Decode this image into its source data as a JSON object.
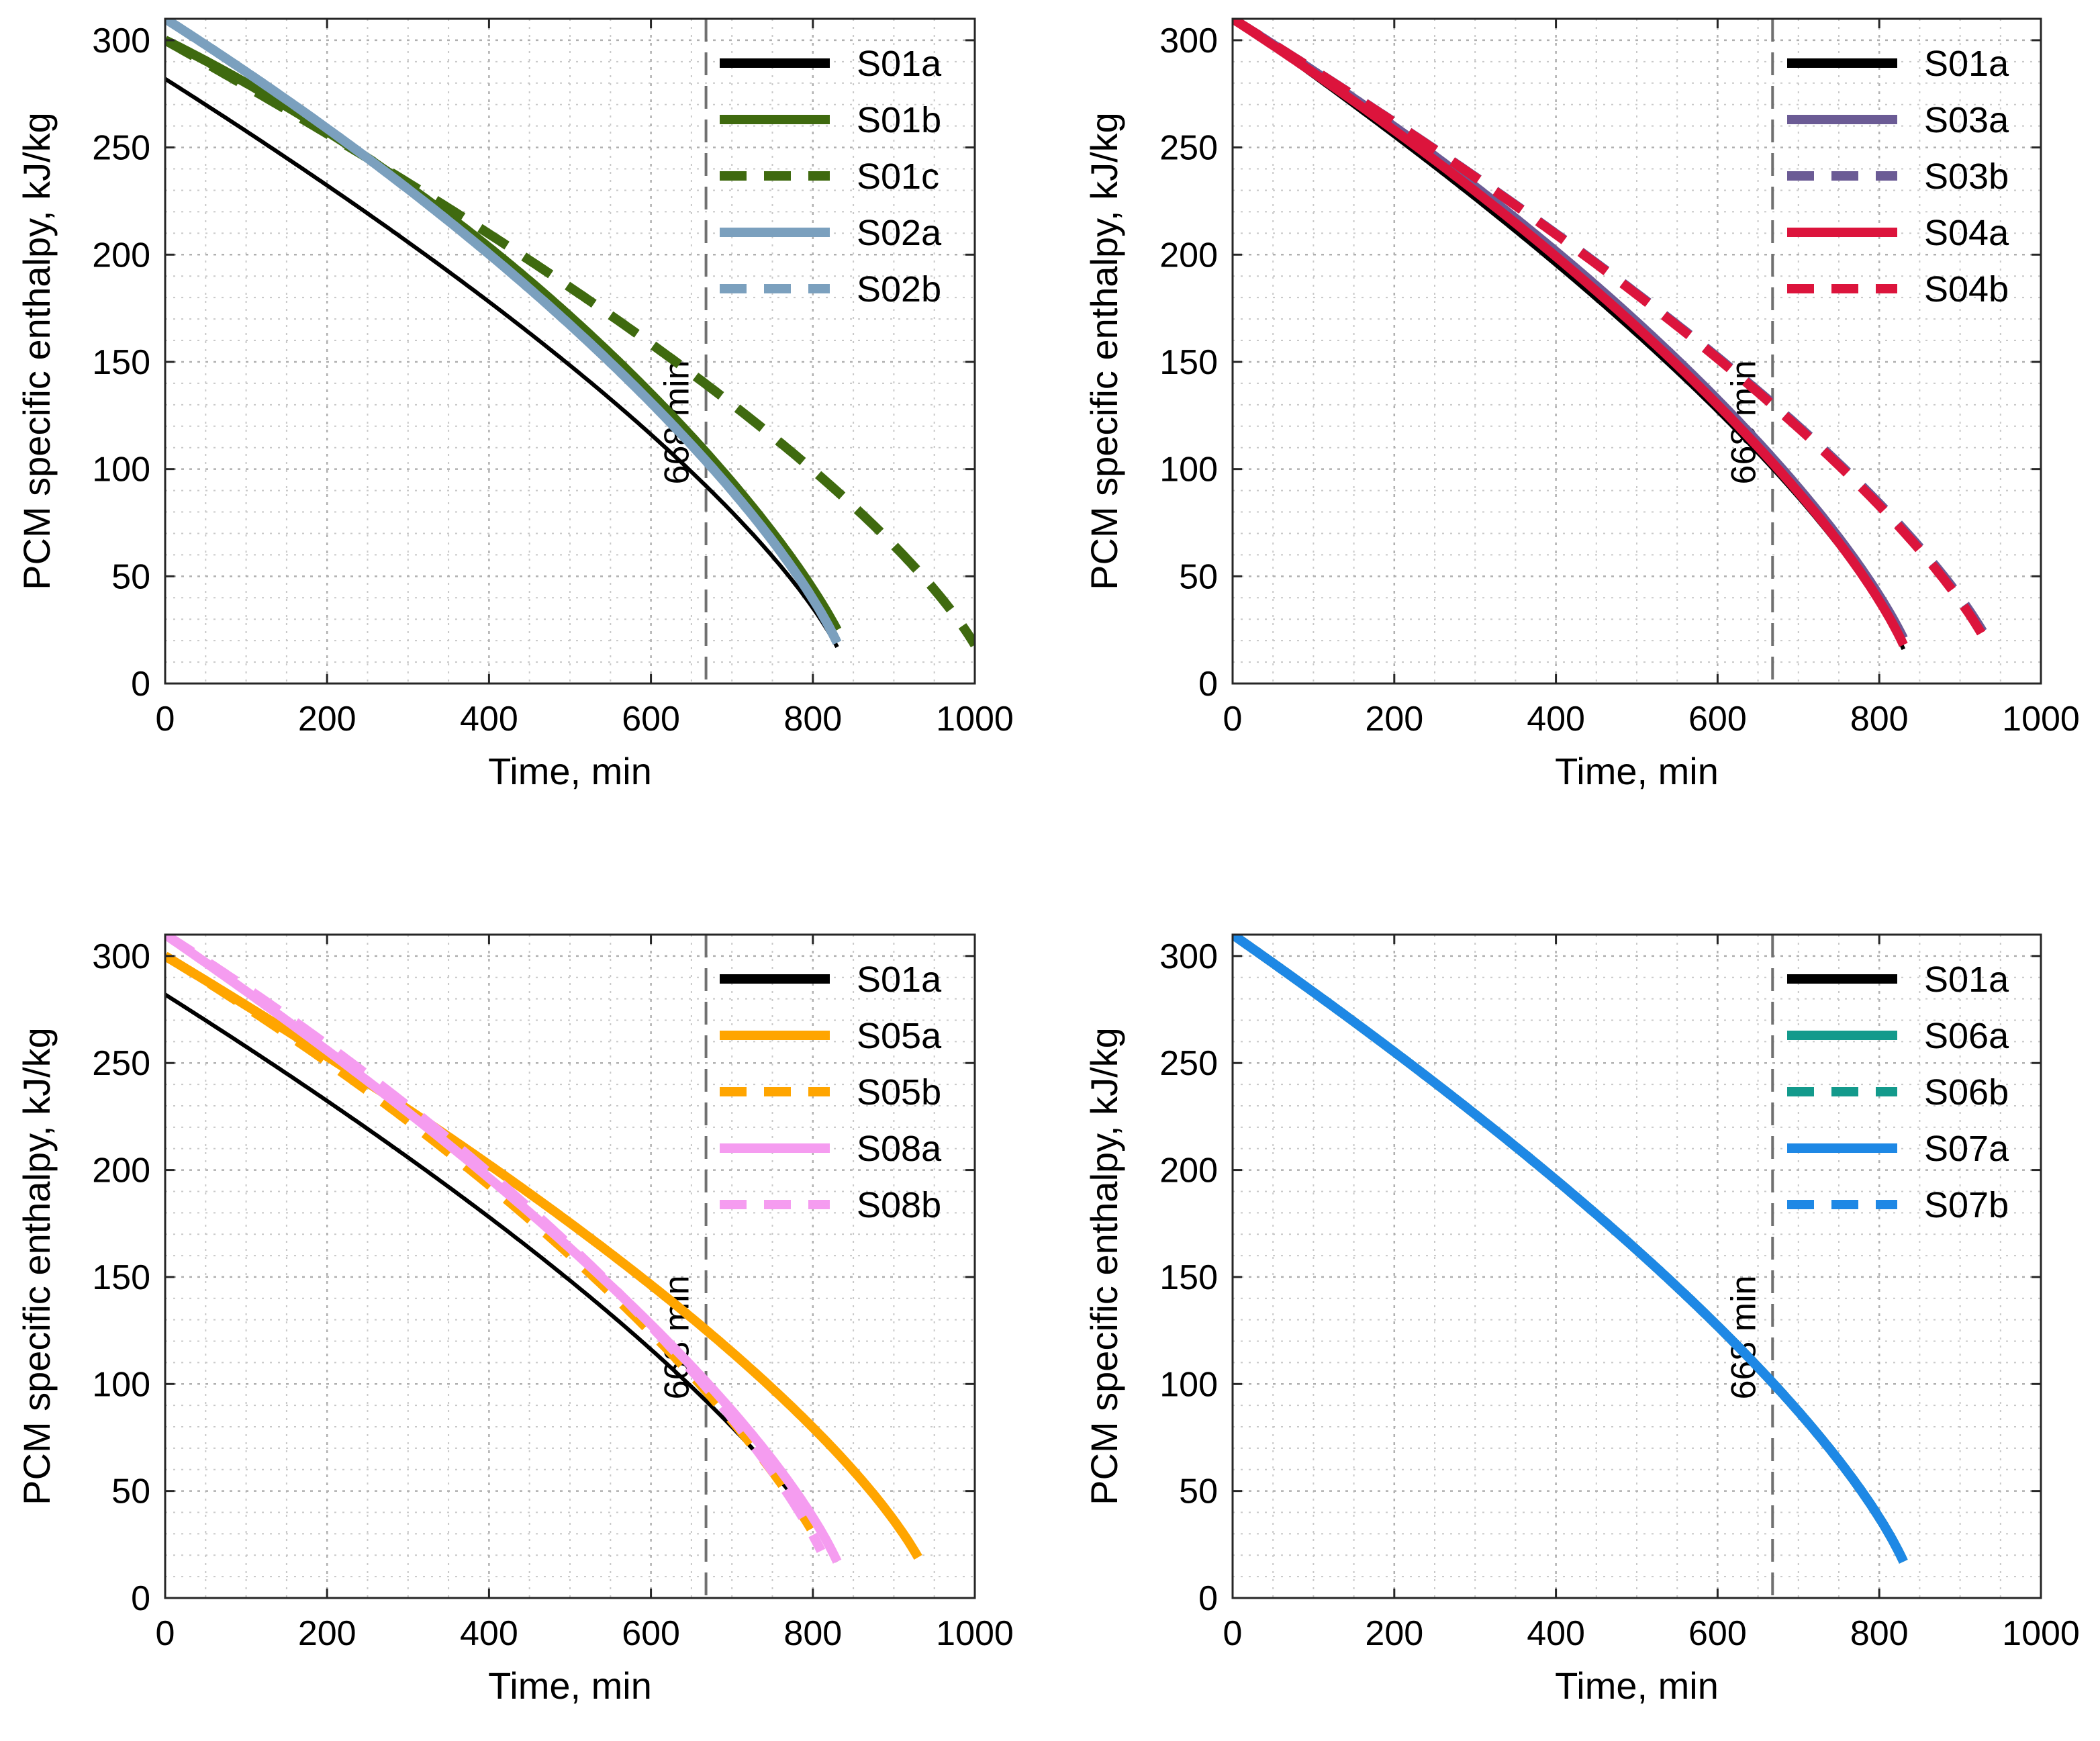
{
  "chart_data": [
    {
      "type": "line",
      "panel": "top-left",
      "xlabel": "Time, min",
      "ylabel": "PCM specific enthalpy, kJ/kg",
      "xlim": [
        0,
        1000
      ],
      "ylim": [
        0,
        310
      ],
      "xticks": [
        0,
        200,
        400,
        600,
        800,
        1000
      ],
      "yticks": [
        0,
        50,
        100,
        150,
        200,
        250,
        300
      ],
      "grid": true,
      "legend_position": "top-right",
      "vline": {
        "x": 668,
        "label": "668 min"
      },
      "series": [
        {
          "name": "S01a",
          "color": "#000000",
          "dash": "solid",
          "end_x": 830,
          "end_y": 17,
          "start_y": 282,
          "width": "thin",
          "shape": 0.0
        },
        {
          "name": "S01b",
          "color": "#3f6a0f",
          "dash": "solid",
          "end_x": 830,
          "end_y": 25,
          "start_y": 300,
          "width": "thick",
          "shape": 0.7
        },
        {
          "name": "S01c",
          "color": "#3f6a0f",
          "dash": "dashed",
          "end_x": 1000,
          "end_y": 18,
          "start_y": 300,
          "width": "thick",
          "shape": 0.0
        },
        {
          "name": "S02a",
          "color": "#7ba0be",
          "dash": "solid",
          "end_x": 830,
          "end_y": 19,
          "start_y": 310,
          "width": "thick",
          "shape": 0.25
        },
        {
          "name": "S02b",
          "color": "#7ba0be",
          "dash": "dashed",
          "end_x": 830,
          "end_y": 19,
          "start_y": 310,
          "width": "thick",
          "shape": 0.25
        }
      ]
    },
    {
      "type": "line",
      "panel": "top-right",
      "xlabel": "Time, min",
      "ylabel": "PCM specific enthalpy, kJ/kg",
      "xlim": [
        0,
        1000
      ],
      "ylim": [
        0,
        310
      ],
      "xticks": [
        0,
        200,
        400,
        600,
        800,
        1000
      ],
      "yticks": [
        0,
        50,
        100,
        150,
        200,
        250,
        300
      ],
      "grid": true,
      "legend_position": "top-right",
      "vline": {
        "x": 668,
        "label": "668 min"
      },
      "series": [
        {
          "name": "S01a",
          "color": "#000000",
          "dash": "solid",
          "end_x": 830,
          "end_y": 16,
          "start_y": 310,
          "width": "thin",
          "shape": 0.0
        },
        {
          "name": "S03a",
          "color": "#6b5b95",
          "dash": "solid",
          "end_x": 830,
          "end_y": 21,
          "start_y": 310,
          "width": "thick",
          "shape": 0.3
        },
        {
          "name": "S03b",
          "color": "#6b5b95",
          "dash": "dashed",
          "end_x": 930,
          "end_y": 23,
          "start_y": 310,
          "width": "thick",
          "shape": 0.0
        },
        {
          "name": "S04a",
          "color": "#dc143c",
          "dash": "solid",
          "end_x": 830,
          "end_y": 18,
          "start_y": 310,
          "width": "thick",
          "shape": 0.2
        },
        {
          "name": "S04b",
          "color": "#dc143c",
          "dash": "dashed",
          "end_x": 930,
          "end_y": 21,
          "start_y": 310,
          "width": "thick",
          "shape": 0.0
        }
      ]
    },
    {
      "type": "line",
      "panel": "bottom-left",
      "xlabel": "Time, min",
      "ylabel": "PCM specific enthalpy, kJ/kg",
      "xlim": [
        0,
        1000
      ],
      "ylim": [
        0,
        310
      ],
      "xticks": [
        0,
        200,
        400,
        600,
        800,
        1000
      ],
      "yticks": [
        0,
        50,
        100,
        150,
        200,
        250,
        300
      ],
      "grid": true,
      "legend_position": "top-right",
      "vline": {
        "x": 668,
        "label": "668 min"
      },
      "series": [
        {
          "name": "S01a",
          "color": "#000000",
          "dash": "solid",
          "end_x": 830,
          "end_y": 17,
          "start_y": 282,
          "width": "thin",
          "shape": 0.0
        },
        {
          "name": "S05a",
          "color": "#ffa500",
          "dash": "solid",
          "end_x": 930,
          "end_y": 19,
          "start_y": 300,
          "width": "thick",
          "shape": 0.0
        },
        {
          "name": "S05b",
          "color": "#ffa500",
          "dash": "dashed",
          "end_x": 810,
          "end_y": 24,
          "start_y": 300,
          "width": "thick",
          "shape": 0.3
        },
        {
          "name": "S08a",
          "color": "#f59cf0",
          "dash": "solid",
          "end_x": 830,
          "end_y": 17,
          "start_y": 310,
          "width": "thick",
          "shape": 0.05
        },
        {
          "name": "S08b",
          "color": "#f59cf0",
          "dash": "dashed",
          "end_x": 810,
          "end_y": 22,
          "start_y": 310,
          "width": "thick",
          "shape": 0.3
        }
      ]
    },
    {
      "type": "line",
      "panel": "bottom-right",
      "xlabel": "Time, min",
      "ylabel": "PCM specific enthalpy, kJ/kg",
      "xlim": [
        0,
        1000
      ],
      "ylim": [
        0,
        310
      ],
      "xticks": [
        0,
        200,
        400,
        600,
        800,
        1000
      ],
      "yticks": [
        0,
        50,
        100,
        150,
        200,
        250,
        300
      ],
      "grid": true,
      "legend_position": "top-right",
      "vline": {
        "x": 668,
        "label": "668 min"
      },
      "series": [
        {
          "name": "S01a",
          "color": "#000000",
          "dash": "solid",
          "end_x": 830,
          "end_y": 17,
          "start_y": 310,
          "width": "thick",
          "shape": 0.0
        },
        {
          "name": "S06a",
          "color": "#139a8c",
          "dash": "solid",
          "end_x": 830,
          "end_y": 17,
          "start_y": 310,
          "width": "thick",
          "shape": 0.0
        },
        {
          "name": "S06b",
          "color": "#139a8c",
          "dash": "dashed",
          "end_x": 830,
          "end_y": 17,
          "start_y": 310,
          "width": "thick",
          "shape": 0.0
        },
        {
          "name": "S07a",
          "color": "#1e88e5",
          "dash": "solid",
          "end_x": 830,
          "end_y": 17,
          "start_y": 310,
          "width": "thick",
          "shape": 0.0
        },
        {
          "name": "S07b",
          "color": "#1e88e5",
          "dash": "dashed",
          "end_x": 830,
          "end_y": 17,
          "start_y": 310,
          "width": "thick",
          "shape": 0.0
        }
      ]
    }
  ]
}
